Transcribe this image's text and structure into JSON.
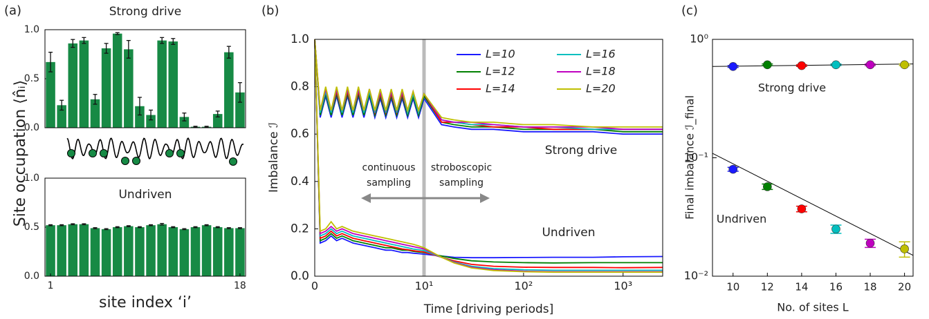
{
  "chart_data": [
    {
      "type": "bar",
      "panel_label": "(a)",
      "title": "Strong drive",
      "ylabel": "Site occupation ⟨n̂ᵢ⟩",
      "color": "#178a45",
      "values": [
        0.67,
        0.23,
        0.86,
        0.89,
        0.29,
        0.81,
        0.96,
        0.8,
        0.22,
        0.13,
        0.89,
        0.88,
        0.11,
        0.01,
        0.01,
        0.14,
        0.77,
        0.36
      ],
      "errors": [
        0.1,
        0.05,
        0.04,
        0.03,
        0.05,
        0.05,
        0.01,
        0.09,
        0.09,
        0.05,
        0.03,
        0.03,
        0.04,
        0.005,
        0.005,
        0.03,
        0.06,
        0.1
      ],
      "ylim": [
        0,
        1
      ],
      "yticks": [
        {
          "value": 0,
          "label": "0.0"
        },
        {
          "value": 0.5,
          "label": "0.5"
        },
        {
          "value": 1,
          "label": "1.0"
        }
      ]
    },
    {
      "type": "bar",
      "title": "Undriven",
      "xlabel": "site index ‘i’",
      "color": "#178a45",
      "categories": [
        "1",
        null,
        null,
        null,
        null,
        null,
        null,
        null,
        null,
        null,
        null,
        null,
        null,
        null,
        null,
        null,
        null,
        "18"
      ],
      "values": [
        0.52,
        0.52,
        0.53,
        0.53,
        0.49,
        0.48,
        0.5,
        0.51,
        0.5,
        0.52,
        0.53,
        0.5,
        0.48,
        0.5,
        0.52,
        0.5,
        0.49,
        0.49
      ],
      "errors": [
        0.005,
        0.005,
        0.005,
        0.005,
        0.005,
        0.005,
        0.005,
        0.005,
        0.005,
        0.005,
        0.008,
        0.005,
        0.005,
        0.005,
        0.005,
        0.005,
        0.005,
        0.005
      ],
      "ylim": [
        0,
        1
      ],
      "yticks": [
        {
          "value": 0,
          "label": "0.0"
        },
        {
          "value": 0.5,
          "label": "0.5"
        },
        {
          "value": 1,
          "label": "1.0"
        }
      ]
    },
    {
      "type": "line",
      "panel_label": "(b)",
      "xlabel": "Time [driving periods]",
      "ylabel": "Imbalance ℐ",
      "xscale": "symlog",
      "x": [
        0,
        0.5,
        1,
        1.5,
        2,
        2.5,
        3,
        3.5,
        4,
        4.5,
        5,
        5.5,
        6,
        6.5,
        7,
        7.5,
        8,
        8.5,
        9,
        9.5,
        10,
        15,
        20,
        30,
        50,
        100,
        200,
        500,
        1000,
        2500
      ],
      "xlim": [
        0,
        2500
      ],
      "xticks": [
        0,
        {
          "value": 10,
          "label": "10¹"
        },
        {
          "value": 100,
          "label": "10²"
        },
        {
          "value": 1000,
          "label": "10³"
        }
      ],
      "ylim": [
        0,
        1
      ],
      "yticks": [
        {
          "value": 0,
          "label": "0.0"
        },
        {
          "value": 0.2,
          "label": "0.2"
        },
        {
          "value": 0.4,
          "label": "0.4"
        },
        {
          "value": 0.6,
          "label": "0.6"
        },
        {
          "value": 0.8,
          "label": "0.8"
        },
        {
          "value": 1,
          "label": "1.0"
        }
      ],
      "vline": 10,
      "strong_label": "Strong drive",
      "undriven_label": "Undriven",
      "sampling_labels": [
        [
          "continuous",
          "sampling"
        ],
        [
          "stroboscopic",
          "sampling"
        ]
      ],
      "series": [
        {
          "name": "L=10",
          "color": "#1a1aff",
          "strong": [
            1.0,
            0.67,
            0.76,
            0.67,
            0.76,
            0.67,
            0.76,
            0.67,
            0.76,
            0.67,
            0.76,
            0.67,
            0.75,
            0.67,
            0.75,
            0.67,
            0.75,
            0.67,
            0.75,
            0.67,
            0.75,
            0.64,
            0.63,
            0.62,
            0.62,
            0.61,
            0.61,
            0.61,
            0.6,
            0.6
          ],
          "undriven": [
            1.0,
            0.14,
            0.15,
            0.17,
            0.15,
            0.16,
            0.15,
            0.14,
            0.135,
            0.13,
            0.125,
            0.12,
            0.115,
            0.11,
            0.11,
            0.105,
            0.1,
            0.1,
            0.097,
            0.095,
            0.093,
            0.085,
            0.08,
            0.078,
            0.078,
            0.079,
            0.08,
            0.08,
            0.082,
            0.083
          ]
        },
        {
          "name": "L=12",
          "color": "#008000",
          "strong": [
            1.0,
            0.68,
            0.77,
            0.68,
            0.77,
            0.68,
            0.77,
            0.68,
            0.77,
            0.68,
            0.77,
            0.68,
            0.76,
            0.68,
            0.76,
            0.68,
            0.76,
            0.68,
            0.76,
            0.68,
            0.76,
            0.65,
            0.64,
            0.63,
            0.63,
            0.62,
            0.62,
            0.62,
            0.61,
            0.61
          ],
          "undriven": [
            1.0,
            0.15,
            0.16,
            0.18,
            0.16,
            0.17,
            0.16,
            0.15,
            0.145,
            0.14,
            0.135,
            0.13,
            0.125,
            0.12,
            0.12,
            0.115,
            0.11,
            0.11,
            0.105,
            0.102,
            0.1,
            0.085,
            0.075,
            0.065,
            0.06,
            0.057,
            0.056,
            0.057,
            0.057,
            0.057
          ]
        },
        {
          "name": "L=14",
          "color": "#ff0000",
          "strong": [
            1.0,
            0.69,
            0.78,
            0.69,
            0.78,
            0.69,
            0.78,
            0.69,
            0.78,
            0.69,
            0.78,
            0.69,
            0.77,
            0.69,
            0.77,
            0.69,
            0.77,
            0.69,
            0.77,
            0.69,
            0.77,
            0.65,
            0.65,
            0.64,
            0.63,
            0.63,
            0.62,
            0.62,
            0.62,
            0.62
          ],
          "undriven": [
            1.0,
            0.16,
            0.17,
            0.19,
            0.17,
            0.18,
            0.17,
            0.16,
            0.155,
            0.15,
            0.145,
            0.14,
            0.135,
            0.13,
            0.125,
            0.12,
            0.115,
            0.112,
            0.108,
            0.105,
            0.102,
            0.08,
            0.065,
            0.05,
            0.042,
            0.038,
            0.037,
            0.037,
            0.036,
            0.037
          ]
        },
        {
          "name": "L=16",
          "color": "#00bfbf",
          "strong": [
            1.0,
            0.69,
            0.78,
            0.69,
            0.79,
            0.69,
            0.79,
            0.69,
            0.79,
            0.69,
            0.78,
            0.69,
            0.78,
            0.69,
            0.78,
            0.69,
            0.78,
            0.69,
            0.77,
            0.69,
            0.77,
            0.66,
            0.65,
            0.64,
            0.64,
            0.63,
            0.63,
            0.62,
            0.62,
            0.62
          ],
          "undriven": [
            1.0,
            0.17,
            0.18,
            0.2,
            0.18,
            0.19,
            0.18,
            0.17,
            0.165,
            0.16,
            0.155,
            0.15,
            0.145,
            0.14,
            0.135,
            0.13,
            0.125,
            0.12,
            0.115,
            0.112,
            0.108,
            0.08,
            0.06,
            0.042,
            0.032,
            0.027,
            0.025,
            0.025,
            0.025,
            0.025
          ]
        },
        {
          "name": "L=18",
          "color": "#bf00bf",
          "strong": [
            1.0,
            0.7,
            0.79,
            0.7,
            0.79,
            0.7,
            0.79,
            0.7,
            0.79,
            0.7,
            0.79,
            0.7,
            0.78,
            0.7,
            0.78,
            0.7,
            0.78,
            0.7,
            0.78,
            0.7,
            0.77,
            0.66,
            0.65,
            0.65,
            0.64,
            0.63,
            0.63,
            0.63,
            0.62,
            0.62
          ],
          "undriven": [
            1.0,
            0.18,
            0.19,
            0.21,
            0.19,
            0.2,
            0.19,
            0.18,
            0.175,
            0.17,
            0.165,
            0.16,
            0.155,
            0.15,
            0.145,
            0.14,
            0.135,
            0.13,
            0.125,
            0.12,
            0.115,
            0.08,
            0.058,
            0.038,
            0.027,
            0.021,
            0.019,
            0.019,
            0.019,
            0.019
          ]
        },
        {
          "name": "L=20",
          "color": "#bfbf00",
          "strong": [
            1.0,
            0.7,
            0.8,
            0.7,
            0.8,
            0.7,
            0.8,
            0.7,
            0.8,
            0.7,
            0.79,
            0.7,
            0.79,
            0.7,
            0.79,
            0.7,
            0.79,
            0.7,
            0.78,
            0.7,
            0.77,
            0.67,
            0.66,
            0.65,
            0.65,
            0.64,
            0.64,
            0.63,
            0.63,
            0.63
          ],
          "undriven": [
            1.0,
            0.19,
            0.2,
            0.23,
            0.2,
            0.21,
            0.2,
            0.19,
            0.185,
            0.18,
            0.175,
            0.17,
            0.165,
            0.16,
            0.155,
            0.15,
            0.145,
            0.14,
            0.135,
            0.128,
            0.12,
            0.08,
            0.056,
            0.035,
            0.024,
            0.019,
            0.017,
            0.017,
            0.017,
            0.017
          ]
        }
      ]
    },
    {
      "type": "scatter",
      "panel_label": "(c)",
      "xlabel": "No. of sites L",
      "ylabel": "Final imbalance ℐ_final",
      "yscale": "log",
      "x": [
        10,
        12,
        14,
        16,
        18,
        20
      ],
      "colors": [
        "#1a1aff",
        "#008000",
        "#ff0000",
        "#00bfbf",
        "#bf00bf",
        "#bfbf00"
      ],
      "xlim": [
        8.8,
        20.5
      ],
      "xticks": [
        10,
        12,
        14,
        16,
        18,
        20
      ],
      "ylim": [
        0.01,
        1
      ],
      "yticks": [
        {
          "value": 0.01,
          "label": "10⁻²"
        },
        {
          "value": 0.1,
          "label": "10⁻¹"
        },
        {
          "value": 1,
          "label": "10⁰"
        }
      ],
      "groups": [
        {
          "label": "Strong drive",
          "values": [
            0.59,
            0.61,
            0.6,
            0.61,
            0.61,
            0.61
          ],
          "errors": [
            0.01,
            0.01,
            0.01,
            0.01,
            0.01,
            0.01
          ],
          "fit": [
            0.59,
            0.62
          ]
        },
        {
          "label": "Undriven",
          "values": [
            0.08,
            0.057,
            0.037,
            0.025,
            0.019,
            0.017
          ],
          "errors": [
            0.003,
            0.003,
            0.002,
            0.002,
            0.0015,
            0.0025
          ],
          "fit": [
            0.109,
            0.015
          ]
        }
      ]
    }
  ]
}
